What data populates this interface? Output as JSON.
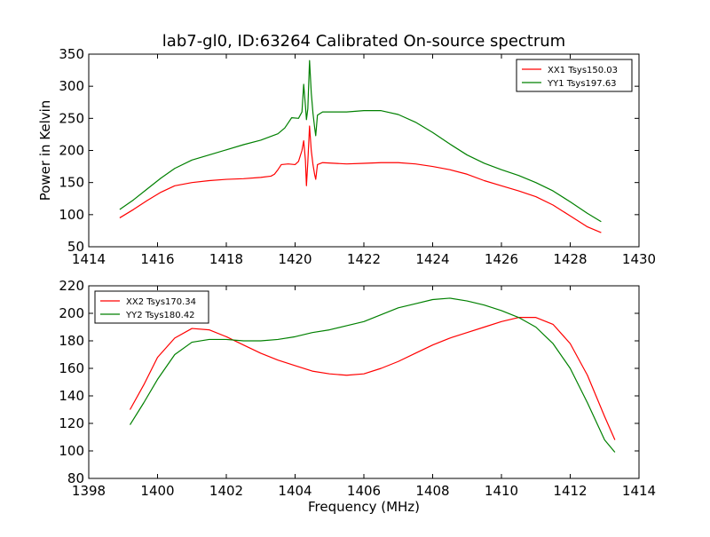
{
  "figure": {
    "title": "lab7-gl0, ID:63264 Calibrated On-source spectrum",
    "xlabel": "Frequency (MHz)"
  },
  "chart_data": [
    {
      "type": "line",
      "ylabel": "Power in Kelvin",
      "xlim": [
        1414,
        1430
      ],
      "ylim": [
        50,
        350
      ],
      "xticks": [
        1414,
        1416,
        1418,
        1420,
        1422,
        1424,
        1426,
        1428,
        1430
      ],
      "yticks": [
        50,
        100,
        150,
        200,
        250,
        300,
        350
      ],
      "legend_position": "top-right",
      "series": [
        {
          "name": "XX1 Tsys150.03",
          "color": "#ff0000",
          "points": [
            [
              1414.9,
              95
            ],
            [
              1415.3,
              108
            ],
            [
              1415.7,
              122
            ],
            [
              1416.1,
              135
            ],
            [
              1416.5,
              145
            ],
            [
              1417.0,
              150
            ],
            [
              1417.5,
              153
            ],
            [
              1418.0,
              155
            ],
            [
              1418.5,
              156
            ],
            [
              1419.0,
              158
            ],
            [
              1419.3,
              160
            ],
            [
              1419.4,
              163
            ],
            [
              1419.5,
              170
            ],
            [
              1419.6,
              178
            ],
            [
              1419.8,
              179
            ],
            [
              1420.0,
              178
            ],
            [
              1420.1,
              183
            ],
            [
              1420.2,
              200
            ],
            [
              1420.25,
              215
            ],
            [
              1420.3,
              185
            ],
            [
              1420.33,
              145
            ],
            [
              1420.37,
              182
            ],
            [
              1420.42,
              238
            ],
            [
              1420.47,
              200
            ],
            [
              1420.52,
              178
            ],
            [
              1420.57,
              162
            ],
            [
              1420.6,
              155
            ],
            [
              1420.65,
              178
            ],
            [
              1420.8,
              181
            ],
            [
              1421.5,
              179
            ],
            [
              1422.0,
              180
            ],
            [
              1422.5,
              181
            ],
            [
              1423.0,
              181
            ],
            [
              1423.5,
              179
            ],
            [
              1424.0,
              175
            ],
            [
              1424.5,
              170
            ],
            [
              1425.0,
              163
            ],
            [
              1425.5,
              153
            ],
            [
              1426.0,
              145
            ],
            [
              1426.5,
              137
            ],
            [
              1427.0,
              128
            ],
            [
              1427.5,
              115
            ],
            [
              1428.0,
              98
            ],
            [
              1428.5,
              81
            ],
            [
              1428.9,
              72
            ]
          ]
        },
        {
          "name": "YY1 Tsys197.63",
          "color": "#008000",
          "points": [
            [
              1414.9,
              108
            ],
            [
              1415.3,
              123
            ],
            [
              1415.7,
              140
            ],
            [
              1416.1,
              157
            ],
            [
              1416.5,
              172
            ],
            [
              1417.0,
              185
            ],
            [
              1417.5,
              193
            ],
            [
              1418.0,
              201
            ],
            [
              1418.5,
              209
            ],
            [
              1419.0,
              216
            ],
            [
              1419.5,
              226
            ],
            [
              1419.7,
              235
            ],
            [
              1419.8,
              243
            ],
            [
              1419.9,
              251
            ],
            [
              1420.1,
              250
            ],
            [
              1420.2,
              260
            ],
            [
              1420.25,
              303
            ],
            [
              1420.3,
              270
            ],
            [
              1420.33,
              248
            ],
            [
              1420.37,
              265
            ],
            [
              1420.42,
              340
            ],
            [
              1420.47,
              290
            ],
            [
              1420.52,
              258
            ],
            [
              1420.57,
              235
            ],
            [
              1420.6,
              223
            ],
            [
              1420.65,
              255
            ],
            [
              1420.8,
              260
            ],
            [
              1421.5,
              260
            ],
            [
              1422.0,
              262
            ],
            [
              1422.5,
              262
            ],
            [
              1423.0,
              256
            ],
            [
              1423.5,
              244
            ],
            [
              1424.0,
              228
            ],
            [
              1424.5,
              210
            ],
            [
              1425.0,
              193
            ],
            [
              1425.5,
              180
            ],
            [
              1426.0,
              170
            ],
            [
              1426.5,
              161
            ],
            [
              1427.0,
              150
            ],
            [
              1427.5,
              137
            ],
            [
              1428.0,
              120
            ],
            [
              1428.5,
              102
            ],
            [
              1428.9,
              89
            ]
          ]
        }
      ]
    },
    {
      "type": "line",
      "ylabel": "",
      "xlim": [
        1398,
        1414
      ],
      "ylim": [
        80,
        220
      ],
      "xticks": [
        1398,
        1400,
        1402,
        1404,
        1406,
        1408,
        1410,
        1412,
        1414
      ],
      "yticks": [
        80,
        100,
        120,
        140,
        160,
        180,
        200,
        220
      ],
      "legend_position": "top-left",
      "series": [
        {
          "name": "XX2 Tsys170.34",
          "color": "#ff0000",
          "points": [
            [
              1399.2,
              130
            ],
            [
              1399.6,
              148
            ],
            [
              1400.0,
              168
            ],
            [
              1400.5,
              182
            ],
            [
              1401.0,
              189
            ],
            [
              1401.5,
              188
            ],
            [
              1402.0,
              183
            ],
            [
              1402.5,
              177
            ],
            [
              1403.0,
              171
            ],
            [
              1403.5,
              166
            ],
            [
              1404.0,
              162
            ],
            [
              1404.5,
              158
            ],
            [
              1405.0,
              156
            ],
            [
              1405.5,
              155
            ],
            [
              1406.0,
              156
            ],
            [
              1406.5,
              160
            ],
            [
              1407.0,
              165
            ],
            [
              1407.5,
              171
            ],
            [
              1408.0,
              177
            ],
            [
              1408.5,
              182
            ],
            [
              1409.0,
              186
            ],
            [
              1409.5,
              190
            ],
            [
              1410.0,
              194
            ],
            [
              1410.5,
              197
            ],
            [
              1411.0,
              197
            ],
            [
              1411.5,
              192
            ],
            [
              1412.0,
              178
            ],
            [
              1412.5,
              155
            ],
            [
              1413.0,
              125
            ],
            [
              1413.3,
              108
            ]
          ]
        },
        {
          "name": "YY2 Tsys180.42",
          "color": "#008000",
          "points": [
            [
              1399.2,
              119
            ],
            [
              1399.6,
              135
            ],
            [
              1400.0,
              152
            ],
            [
              1400.5,
              170
            ],
            [
              1401.0,
              179
            ],
            [
              1401.5,
              181
            ],
            [
              1402.0,
              181
            ],
            [
              1402.5,
              180
            ],
            [
              1403.0,
              180
            ],
            [
              1403.5,
              181
            ],
            [
              1404.0,
              183
            ],
            [
              1404.5,
              186
            ],
            [
              1405.0,
              188
            ],
            [
              1405.5,
              191
            ],
            [
              1406.0,
              194
            ],
            [
              1406.5,
              199
            ],
            [
              1407.0,
              204
            ],
            [
              1407.5,
              207
            ],
            [
              1408.0,
              210
            ],
            [
              1408.5,
              211
            ],
            [
              1409.0,
              209
            ],
            [
              1409.5,
              206
            ],
            [
              1410.0,
              202
            ],
            [
              1410.5,
              197
            ],
            [
              1411.0,
              190
            ],
            [
              1411.5,
              178
            ],
            [
              1412.0,
              160
            ],
            [
              1412.5,
              135
            ],
            [
              1413.0,
              108
            ],
            [
              1413.3,
              99
            ]
          ]
        }
      ]
    }
  ]
}
